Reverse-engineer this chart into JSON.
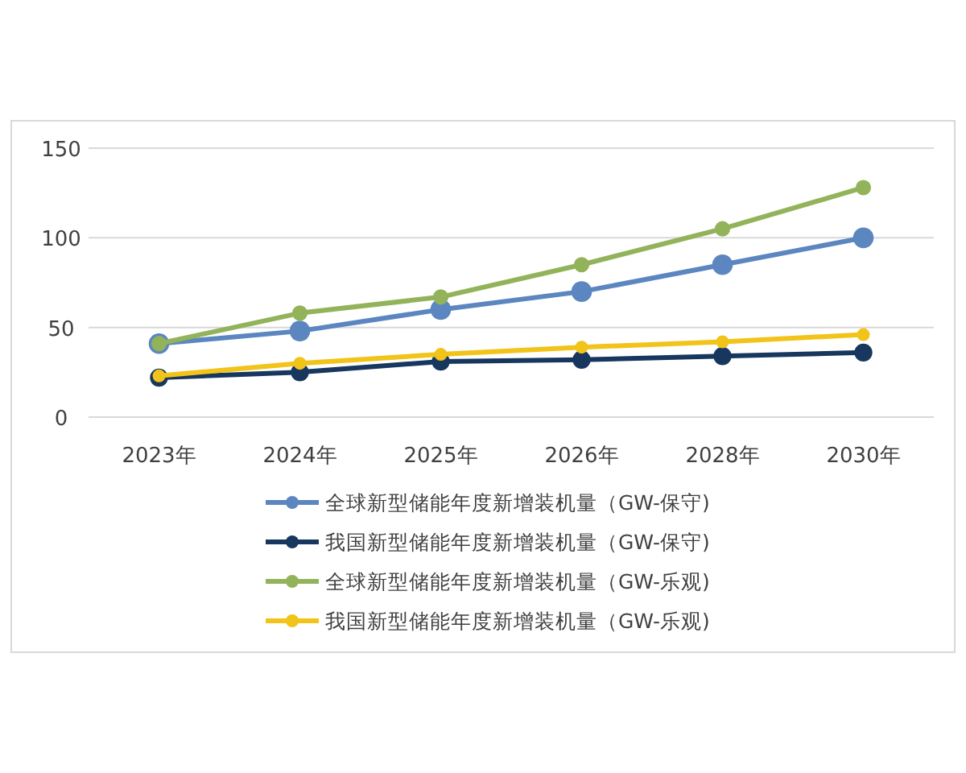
{
  "chart_data": {
    "type": "line",
    "categories": [
      "2023年",
      "2024年",
      "2025年",
      "2026年",
      "2028年",
      "2030年"
    ],
    "series": [
      {
        "name": "全球新型储能年度新增装机量（GW-保守)",
        "color": "#5b86c0",
        "values": [
          41,
          48,
          60,
          70,
          85,
          100
        ]
      },
      {
        "name": "我国新型储能年度新增装机量（GW-保守)",
        "color": "#17375e",
        "values": [
          22,
          25,
          31,
          32,
          34,
          36
        ]
      },
      {
        "name": "全球新型储能年度新增装机量（GW-乐观)",
        "color": "#92b35a",
        "values": [
          41,
          58,
          67,
          85,
          105,
          128
        ]
      },
      {
        "name": "我国新型储能年度新增装机量（GW-乐观)",
        "color": "#f2c318",
        "values": [
          23,
          30,
          35,
          39,
          42,
          46
        ]
      }
    ],
    "ylim": [
      0,
      150
    ],
    "yticks": [
      0,
      50,
      100,
      150
    ],
    "grid": "y",
    "legend": "bottom",
    "marker": "circle",
    "line_style": "solid"
  }
}
